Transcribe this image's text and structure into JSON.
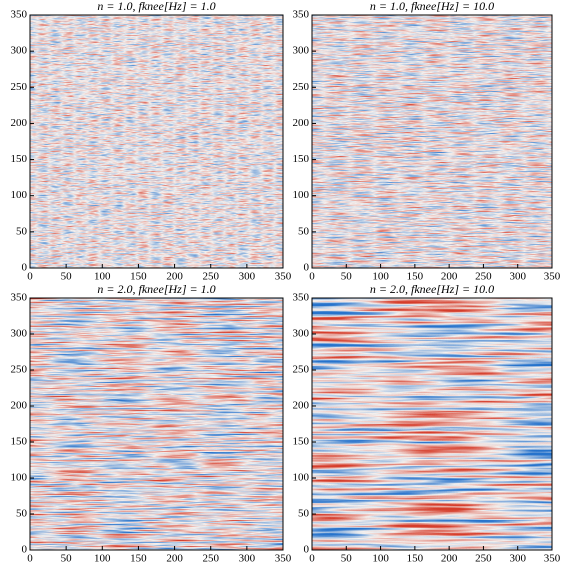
{
  "chart_data": [
    {
      "type": "heatmap",
      "title": "n = 1.0, fknee[Hz] = 1.0",
      "xlim": [
        0,
        350
      ],
      "ylim": [
        0,
        350
      ],
      "xticks": [
        0,
        50,
        100,
        150,
        200,
        250,
        300,
        350
      ],
      "yticks": [
        0,
        50,
        100,
        150,
        200,
        250,
        300,
        350
      ]
    },
    {
      "type": "heatmap",
      "title": "n = 1.0, fknee[Hz] = 10.0",
      "xlim": [
        0,
        350
      ],
      "ylim": [
        0,
        350
      ],
      "xticks": [
        0,
        50,
        100,
        150,
        200,
        250,
        300,
        350
      ],
      "yticks": [
        0,
        50,
        100,
        150,
        200,
        250,
        300,
        350
      ]
    },
    {
      "type": "heatmap",
      "title": "n = 2.0, fknee[Hz] = 1.0",
      "xlim": [
        0,
        350
      ],
      "ylim": [
        0,
        350
      ],
      "xticks": [
        0,
        50,
        100,
        150,
        200,
        250,
        300,
        350
      ],
      "yticks": [
        0,
        50,
        100,
        150,
        200,
        250,
        300,
        350
      ]
    },
    {
      "type": "heatmap",
      "title": "n = 2.0, fknee[Hz] = 10.0",
      "xlim": [
        0,
        350
      ],
      "ylim": [
        0,
        350
      ],
      "xticks": [
        0,
        50,
        100,
        150,
        200,
        250,
        300,
        350
      ],
      "yticks": [
        0,
        50,
        100,
        150,
        200,
        250,
        300,
        350
      ]
    }
  ]
}
